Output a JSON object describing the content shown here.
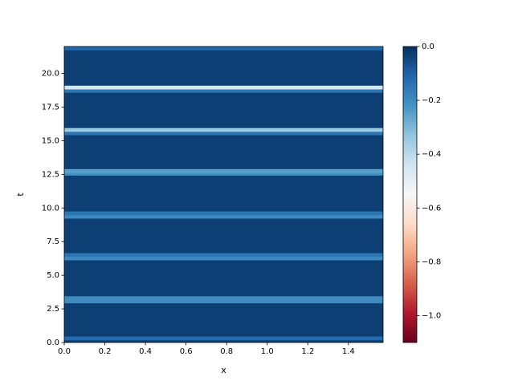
{
  "chart_data": {
    "type": "heatmap",
    "x_label": "x",
    "y_label": "t",
    "xlim": [
      0,
      1.5708
    ],
    "ylim": [
      0,
      22
    ],
    "xticks": [
      {
        "value": 0,
        "label": "0.0"
      },
      0.2,
      0.4,
      0.6,
      0.8,
      {
        "value": 1,
        "label": "1.0"
      },
      1.2,
      1.4
    ],
    "yticks": [
      {
        "value": 0,
        "label": "0.0"
      },
      2.5,
      {
        "value": 5,
        "label": "5.0"
      },
      7.5,
      {
        "value": 10,
        "label": "10.0"
      },
      12.5,
      {
        "value": 15,
        "label": "15.0"
      },
      17.5,
      {
        "value": 20,
        "label": "20.0"
      }
    ],
    "background": -0.03,
    "y": [
      0.3,
      3.05,
      3.3,
      6.25,
      6.5,
      9.35,
      9.6,
      12.55,
      12.75,
      15.55,
      15.8,
      18.7,
      18.95,
      21.9
    ],
    "values": [
      -0.12,
      -0.2,
      -0.2,
      -0.2,
      -0.15,
      -0.2,
      -0.15,
      -0.22,
      -0.25,
      -0.15,
      -0.35,
      -0.15,
      -0.45,
      -0.12
    ],
    "clim": [
      -1.1,
      0
    ],
    "cticks": [
      {
        "value": 0,
        "label": "0.0"
      },
      {
        "value": -0.2,
        "label": "−0.2"
      },
      {
        "value": -0.4,
        "label": "−0.4"
      },
      {
        "value": -0.6,
        "label": "−0.6"
      },
      {
        "value": -0.8,
        "label": "−0.8"
      },
      {
        "value": -1,
        "label": "−1.0"
      }
    ],
    "colormap": [
      "#67001f",
      "#b2182b",
      "#d6604d",
      "#f4a582",
      "#fddbc7",
      "#f7f7f7",
      "#d1e5f0",
      "#92c5de",
      "#4393c3",
      "#2166ac",
      "#053061"
    ]
  }
}
